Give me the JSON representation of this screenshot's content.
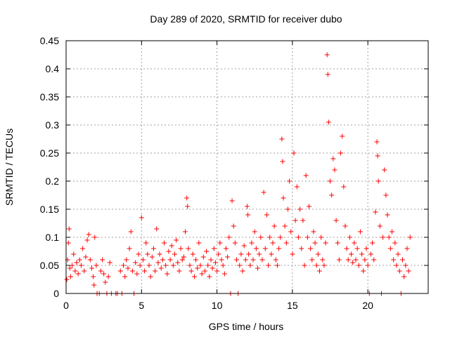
{
  "chart_data": {
    "type": "scatter",
    "title": "Day 289 of 2020, SRMTID for receiver dubo",
    "xlabel": "GPS time / hours",
    "ylabel": "SRMTID / TECUs",
    "xlim": [
      0,
      24
    ],
    "ylim": [
      0,
      0.45
    ],
    "x_ticks": [
      0,
      5,
      10,
      15,
      20
    ],
    "x_tick_labels": [
      "0",
      "5",
      "10",
      "15",
      "20"
    ],
    "y_ticks": [
      0,
      0.05,
      0.1,
      0.15,
      0.2,
      0.25,
      0.3,
      0.35,
      0.4,
      0.45
    ],
    "y_tick_labels": [
      "0",
      "0.05",
      "0.1",
      "0.15",
      "0.2",
      "0.25",
      "0.3",
      "0.35",
      "0.4",
      "0.45"
    ],
    "grid": true,
    "marker": "+",
    "marker_color": "#ff0000",
    "series": [
      {
        "name": "SRMTID",
        "points": [
          [
            0.05,
            0.025
          ],
          [
            0.1,
            0.06
          ],
          [
            0.15,
            0.09
          ],
          [
            0.2,
            0.115
          ],
          [
            0.25,
            0.045
          ],
          [
            0.3,
            0.03
          ],
          [
            0.4,
            0.05
          ],
          [
            0.5,
            0.07
          ],
          [
            0.6,
            0.04
          ],
          [
            0.7,
            0.055
          ],
          [
            0.8,
            0.035
          ],
          [
            0.9,
            0.06
          ],
          [
            1.0,
            0.05
          ],
          [
            1.1,
            0.08
          ],
          [
            1.2,
            0.04
          ],
          [
            1.3,
            0.065
          ],
          [
            1.4,
            0.095
          ],
          [
            1.5,
            0.105
          ],
          [
            1.6,
            0.06
          ],
          [
            1.7,
            0.045
          ],
          [
            1.8,
            0.03
          ],
          [
            1.85,
            0.015
          ],
          [
            1.9,
            0.1
          ],
          [
            2.0,
            0.05
          ],
          [
            2.05,
            0.0
          ],
          [
            2.2,
            0.0
          ],
          [
            2.3,
            0.04
          ],
          [
            2.4,
            0.06
          ],
          [
            2.5,
            0.035
          ],
          [
            2.6,
            0.02
          ],
          [
            2.7,
            0.0
          ],
          [
            2.8,
            0.03
          ],
          [
            2.9,
            0.055
          ],
          [
            3.0,
            0.0
          ],
          [
            3.3,
            0.0
          ],
          [
            3.4,
            0.0
          ],
          [
            3.6,
            0.04
          ],
          [
            3.7,
            0.0
          ],
          [
            3.8,
            0.05
          ],
          [
            3.9,
            0.03
          ],
          [
            4.0,
            0.06
          ],
          [
            4.1,
            0.045
          ],
          [
            4.2,
            0.08
          ],
          [
            4.3,
            0.11
          ],
          [
            4.4,
            0.04
          ],
          [
            4.5,
            0.0
          ],
          [
            4.6,
            0.055
          ],
          [
            4.7,
            0.035
          ],
          [
            4.8,
            0.07
          ],
          [
            4.9,
            0.05
          ],
          [
            5.0,
            0.135
          ],
          [
            5.1,
            0.06
          ],
          [
            5.2,
            0.04
          ],
          [
            5.3,
            0.09
          ],
          [
            5.4,
            0.07
          ],
          [
            5.5,
            0.05
          ],
          [
            5.6,
            0.03
          ],
          [
            5.7,
            0.065
          ],
          [
            5.8,
            0.08
          ],
          [
            5.9,
            0.04
          ],
          [
            6.0,
            0.115
          ],
          [
            6.1,
            0.055
          ],
          [
            6.2,
            0.07
          ],
          [
            6.3,
            0.045
          ],
          [
            6.4,
            0.06
          ],
          [
            6.5,
            0.09
          ],
          [
            6.6,
            0.05
          ],
          [
            6.7,
            0.035
          ],
          [
            6.8,
            0.075
          ],
          [
            6.9,
            0.06
          ],
          [
            7.0,
            0.085
          ],
          [
            7.1,
            0.05
          ],
          [
            7.2,
            0.07
          ],
          [
            7.3,
            0.095
          ],
          [
            7.4,
            0.055
          ],
          [
            7.5,
            0.04
          ],
          [
            7.6,
            0.08
          ],
          [
            7.7,
            0.06
          ],
          [
            7.8,
            0.065
          ],
          [
            7.9,
            0.11
          ],
          [
            8.0,
            0.17
          ],
          [
            8.05,
            0.155
          ],
          [
            8.1,
            0.08
          ],
          [
            8.2,
            0.05
          ],
          [
            8.3,
            0.04
          ],
          [
            8.4,
            0.07
          ],
          [
            8.5,
            0.03
          ],
          [
            8.6,
            0.06
          ],
          [
            8.7,
            0.045
          ],
          [
            8.8,
            0.09
          ],
          [
            8.9,
            0.05
          ],
          [
            9.0,
            0.035
          ],
          [
            9.1,
            0.065
          ],
          [
            9.2,
            0.04
          ],
          [
            9.3,
            0.075
          ],
          [
            9.4,
            0.05
          ],
          [
            9.5,
            0.03
          ],
          [
            9.6,
            0.06
          ],
          [
            9.7,
            0.045
          ],
          [
            9.8,
            0.08
          ],
          [
            9.9,
            0.055
          ],
          [
            10.0,
            0.04
          ],
          [
            10.1,
            0.07
          ],
          [
            10.2,
            0.09
          ],
          [
            10.3,
            0.06
          ],
          [
            10.4,
            0.05
          ],
          [
            10.5,
            0.035
          ],
          [
            10.6,
            0.08
          ],
          [
            10.7,
            0.065
          ],
          [
            10.8,
            0.1
          ],
          [
            10.9,
            0.0
          ],
          [
            11.0,
            0.165
          ],
          [
            11.1,
            0.12
          ],
          [
            11.2,
            0.09
          ],
          [
            11.3,
            0.06
          ],
          [
            11.4,
            0.0
          ],
          [
            11.5,
            0.05
          ],
          [
            11.6,
            0.07
          ],
          [
            11.7,
            0.04
          ],
          [
            11.8,
            0.085
          ],
          [
            11.9,
            0.06
          ],
          [
            12.0,
            0.155
          ],
          [
            12.05,
            0.14
          ],
          [
            12.1,
            0.07
          ],
          [
            12.2,
            0.05
          ],
          [
            12.3,
            0.09
          ],
          [
            12.4,
            0.06
          ],
          [
            12.5,
            0.11
          ],
          [
            12.6,
            0.08
          ],
          [
            12.7,
            0.045
          ],
          [
            12.8,
            0.07
          ],
          [
            12.9,
            0.1
          ],
          [
            13.0,
            0.06
          ],
          [
            13.1,
            0.18
          ],
          [
            13.2,
            0.08
          ],
          [
            13.3,
            0.14
          ],
          [
            13.4,
            0.05
          ],
          [
            13.5,
            0.1
          ],
          [
            13.6,
            0.07
          ],
          [
            13.7,
            0.09
          ],
          [
            13.8,
            0.12
          ],
          [
            13.9,
            0.06
          ],
          [
            14.0,
            0.05
          ],
          [
            14.1,
            0.08
          ],
          [
            14.2,
            0.1
          ],
          [
            14.3,
            0.275
          ],
          [
            14.35,
            0.235
          ],
          [
            14.4,
            0.17
          ],
          [
            14.5,
            0.12
          ],
          [
            14.6,
            0.09
          ],
          [
            14.7,
            0.15
          ],
          [
            14.8,
            0.2
          ],
          [
            14.9,
            0.11
          ],
          [
            15.0,
            0.07
          ],
          [
            15.1,
            0.25
          ],
          [
            15.2,
            0.13
          ],
          [
            15.3,
            0.19
          ],
          [
            15.4,
            0.1
          ],
          [
            15.5,
            0.15
          ],
          [
            15.6,
            0.08
          ],
          [
            15.7,
            0.13
          ],
          [
            15.8,
            0.05
          ],
          [
            15.9,
            0.21
          ],
          [
            16.0,
            0.1
          ],
          [
            16.1,
            0.155
          ],
          [
            16.2,
            0.08
          ],
          [
            16.3,
            0.06
          ],
          [
            16.4,
            0.11
          ],
          [
            16.5,
            0.09
          ],
          [
            16.6,
            0.05
          ],
          [
            16.7,
            0.07
          ],
          [
            16.8,
            0.04
          ],
          [
            16.9,
            0.1
          ],
          [
            17.0,
            0.06
          ],
          [
            17.1,
            0.05
          ],
          [
            17.2,
            0.09
          ],
          [
            17.3,
            0.425
          ],
          [
            17.35,
            0.39
          ],
          [
            17.4,
            0.305
          ],
          [
            17.5,
            0.2
          ],
          [
            17.6,
            0.175
          ],
          [
            17.7,
            0.24
          ],
          [
            17.8,
            0.22
          ],
          [
            17.9,
            0.13
          ],
          [
            18.0,
            0.09
          ],
          [
            18.1,
            0.06
          ],
          [
            18.2,
            0.25
          ],
          [
            18.3,
            0.28
          ],
          [
            18.4,
            0.19
          ],
          [
            18.5,
            0.12
          ],
          [
            18.6,
            0.08
          ],
          [
            18.7,
            0.06
          ],
          [
            18.8,
            0.1
          ],
          [
            18.9,
            0.07
          ],
          [
            19.0,
            0.055
          ],
          [
            19.1,
            0.09
          ],
          [
            19.2,
            0.06
          ],
          [
            19.3,
            0.08
          ],
          [
            19.4,
            0.05
          ],
          [
            19.5,
            0.11
          ],
          [
            19.6,
            0.07
          ],
          [
            19.7,
            0.04
          ],
          [
            19.8,
            0.06
          ],
          [
            19.9,
            0.08
          ],
          [
            20.0,
            0.05
          ],
          [
            20.1,
            0.0
          ],
          [
            20.2,
            0.07
          ],
          [
            20.3,
            0.09
          ],
          [
            20.4,
            0.06
          ],
          [
            20.5,
            0.145
          ],
          [
            20.6,
            0.27
          ],
          [
            20.65,
            0.245
          ],
          [
            20.7,
            0.2
          ],
          [
            20.8,
            0.12
          ],
          [
            20.9,
            0.0
          ],
          [
            21.0,
            0.1
          ],
          [
            21.1,
            0.22
          ],
          [
            21.2,
            0.175
          ],
          [
            21.3,
            0.14
          ],
          [
            21.4,
            0.1
          ],
          [
            21.5,
            0.08
          ],
          [
            21.6,
            0.11
          ],
          [
            21.7,
            0.06
          ],
          [
            21.8,
            0.09
          ],
          [
            21.9,
            0.05
          ],
          [
            22.0,
            0.07
          ],
          [
            22.1,
            0.04
          ],
          [
            22.2,
            0.0
          ],
          [
            22.3,
            0.06
          ],
          [
            22.4,
            0.03
          ],
          [
            22.5,
            0.05
          ],
          [
            22.6,
            0.08
          ],
          [
            22.7,
            0.04
          ],
          [
            22.8,
            0.1
          ]
        ]
      }
    ]
  }
}
